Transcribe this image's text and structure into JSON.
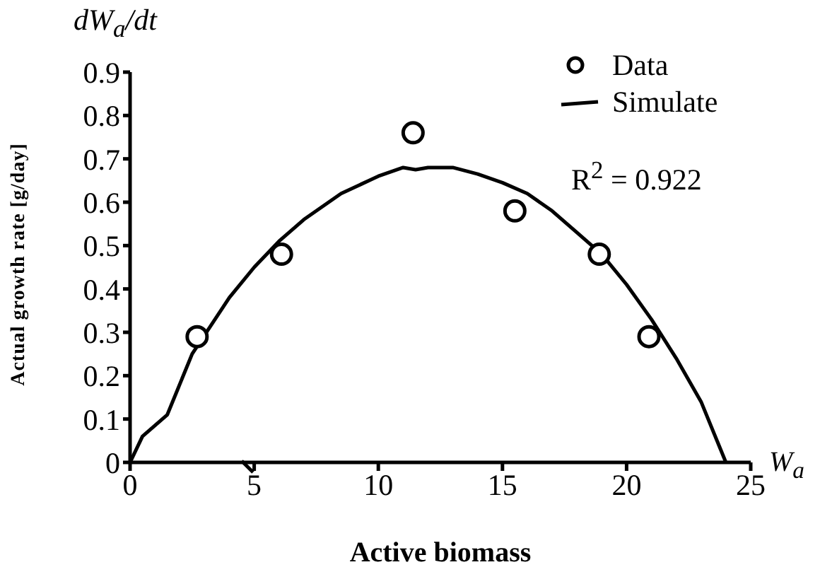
{
  "chart_data": {
    "type": "scatter",
    "xlabel": "Active biomass",
    "ylabel": "Actual growth rate [g/day]",
    "annotations": [
      "dW$_{a}$/dt",
      "W$_{a}$",
      "R$^{2}$ = 0.922"
    ],
    "xlim": [
      0,
      25
    ],
    "xticks": [
      0,
      5,
      10,
      15,
      20,
      25
    ],
    "ylim": [
      0,
      0.9
    ],
    "yticks": [
      0,
      0.1,
      0.2,
      0.3,
      0.4,
      0.5,
      0.6,
      0.7,
      0.8,
      0.9
    ],
    "grid": false,
    "legend": "top right",
    "series": [
      {
        "name": "Data",
        "marker": "circle",
        "color": "#000000",
        "x": [
          2.7,
          6.1,
          11.4,
          15.5,
          18.9,
          20.9
        ],
        "values": [
          0.29,
          0.48,
          0.76,
          0.58,
          0.48,
          0.29
        ]
      },
      {
        "name": "Simulate",
        "type": "line",
        "marker": "none",
        "line_style": "solid",
        "color": "#000000",
        "x": [
          0,
          0.5,
          1.5,
          2.5,
          4,
          5,
          6,
          7,
          8.5,
          10,
          11,
          11.5,
          12,
          13,
          14,
          15,
          16,
          17,
          18,
          19,
          20,
          21,
          22,
          23,
          24
        ],
        "values": [
          0,
          0.06,
          0.11,
          0.25,
          0.38,
          0.45,
          0.51,
          0.56,
          0.62,
          0.66,
          0.68,
          0.675,
          0.68,
          0.68,
          0.665,
          0.645,
          0.62,
          0.58,
          0.53,
          0.48,
          0.41,
          0.33,
          0.24,
          0.14,
          0
        ]
      }
    ]
  }
}
